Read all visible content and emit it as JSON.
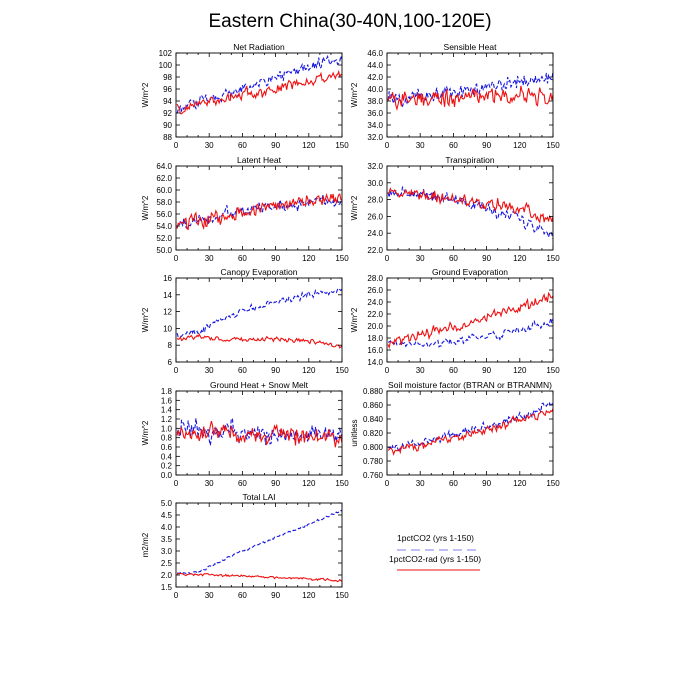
{
  "figure": {
    "title": "Eastern China(30-40N,100-120E)"
  },
  "colors": {
    "series_1pctCO2": "#1515e0",
    "series_1pctCO2_rad": "#ee1111"
  },
  "legend": {
    "items": [
      {
        "label": "1pctCO2 (yrs 1-150)",
        "color": "#1515e0",
        "style": "dashed"
      },
      {
        "label": "1pctCO2-rad (yrs 1-150)",
        "color": "#ee1111",
        "style": "solid"
      }
    ]
  },
  "chart_data": [
    {
      "type": "line",
      "title": "Net Radiation",
      "xlabel": "",
      "ylabel": "W/m^2",
      "xlim": [
        0,
        150
      ],
      "ylim": [
        88,
        102
      ],
      "xticks": [
        0,
        30,
        60,
        90,
        120,
        150
      ],
      "xtick_labels": [
        "0",
        "30",
        "60",
        "90",
        "120",
        "150"
      ],
      "yticks": [
        88,
        90,
        92,
        94,
        96,
        98,
        100,
        102
      ],
      "ytick_labels": [
        "88",
        "90",
        "92",
        "94",
        "96",
        "98",
        "100",
        "102"
      ],
      "series": [
        {
          "name": "1pctCO2 (yrs 1-150)",
          "style": "dashed",
          "color": "#1515e0",
          "keypoints": [
            [
              1,
              92.5
            ],
            [
              30,
              94.5
            ],
            [
              60,
              96
            ],
            [
              90,
              98
            ],
            [
              120,
              99.5
            ],
            [
              150,
              101
            ]
          ],
          "noise": 1.2
        },
        {
          "name": "1pctCO2-rad (yrs 1-150)",
          "style": "solid",
          "color": "#ee1111",
          "keypoints": [
            [
              1,
              92.5
            ],
            [
              30,
              94
            ],
            [
              60,
              95
            ],
            [
              90,
              96
            ],
            [
              120,
              97.2
            ],
            [
              150,
              98
            ]
          ],
          "noise": 1.2
        }
      ]
    },
    {
      "type": "line",
      "title": "Sensible Heat",
      "xlabel": "",
      "ylabel": "W/m^2",
      "xlim": [
        0,
        150
      ],
      "ylim": [
        32,
        46
      ],
      "xticks": [
        0,
        30,
        60,
        90,
        120,
        150
      ],
      "xtick_labels": [
        "0",
        "30",
        "60",
        "90",
        "120",
        "150"
      ],
      "yticks": [
        32,
        34,
        36,
        38,
        40,
        42,
        44,
        46
      ],
      "ytick_labels": [
        "32.0",
        "34.0",
        "36.0",
        "38.0",
        "40.0",
        "42.0",
        "44.0",
        "46.0"
      ],
      "series": [
        {
          "name": "1pctCO2 (yrs 1-150)",
          "style": "dashed",
          "color": "#1515e0",
          "keypoints": [
            [
              1,
              38.2
            ],
            [
              30,
              38.8
            ],
            [
              60,
              39.5
            ],
            [
              90,
              40.3
            ],
            [
              120,
              41.2
            ],
            [
              150,
              42
            ]
          ],
          "noise": 1.6
        },
        {
          "name": "1pctCO2-rad (yrs 1-150)",
          "style": "solid",
          "color": "#ee1111",
          "keypoints": [
            [
              1,
              38.5
            ],
            [
              30,
              38.5
            ],
            [
              60,
              38.7
            ],
            [
              90,
              38.8
            ],
            [
              120,
              38.8
            ],
            [
              150,
              38.6
            ]
          ],
          "noise": 1.8
        }
      ]
    },
    {
      "type": "line",
      "title": "Latent Heat",
      "xlabel": "",
      "ylabel": "W/m^2",
      "xlim": [
        0,
        150
      ],
      "ylim": [
        50,
        64
      ],
      "xticks": [
        0,
        30,
        60,
        90,
        120,
        150
      ],
      "xtick_labels": [
        "0",
        "30",
        "60",
        "90",
        "120",
        "150"
      ],
      "yticks": [
        50,
        52,
        54,
        56,
        58,
        60,
        62,
        64
      ],
      "ytick_labels": [
        "50.0",
        "52.0",
        "54.0",
        "56.0",
        "58.0",
        "60.0",
        "62.0",
        "64.0"
      ],
      "series": [
        {
          "name": "1pctCO2 (yrs 1-150)",
          "style": "dashed",
          "color": "#1515e0",
          "keypoints": [
            [
              1,
              54.2
            ],
            [
              30,
              55.3
            ],
            [
              60,
              56.5
            ],
            [
              90,
              57.3
            ],
            [
              120,
              58
            ],
            [
              150,
              58.5
            ]
          ],
          "noise": 1.3
        },
        {
          "name": "1pctCO2-rad (yrs 1-150)",
          "style": "solid",
          "color": "#ee1111",
          "keypoints": [
            [
              1,
              54.5
            ],
            [
              30,
              55
            ],
            [
              60,
              56.2
            ],
            [
              90,
              57.3
            ],
            [
              120,
              58.2
            ],
            [
              150,
              58.8
            ]
          ],
          "noise": 1.6
        }
      ]
    },
    {
      "type": "line",
      "title": "Transpiration",
      "xlabel": "",
      "ylabel": "W/m^2",
      "xlim": [
        0,
        150
      ],
      "ylim": [
        22,
        32
      ],
      "xticks": [
        0,
        30,
        60,
        90,
        120,
        150
      ],
      "xtick_labels": [
        "0",
        "30",
        "60",
        "90",
        "120",
        "150"
      ],
      "yticks": [
        22,
        24,
        26,
        28,
        30,
        32
      ],
      "ytick_labels": [
        "22.0",
        "24.0",
        "26.0",
        "28.0",
        "30.0",
        "32.0"
      ],
      "series": [
        {
          "name": "1pctCO2 (yrs 1-150)",
          "style": "dashed",
          "color": "#1515e0",
          "keypoints": [
            [
              1,
              28.8
            ],
            [
              30,
              28.8
            ],
            [
              60,
              28
            ],
            [
              90,
              27
            ],
            [
              120,
              25.5
            ],
            [
              150,
              23.8
            ]
          ],
          "noise": 0.9
        },
        {
          "name": "1pctCO2-rad (yrs 1-150)",
          "style": "solid",
          "color": "#ee1111",
          "keypoints": [
            [
              1,
              28.8
            ],
            [
              30,
              28.5
            ],
            [
              60,
              28
            ],
            [
              90,
              27.5
            ],
            [
              120,
              27
            ],
            [
              150,
              25.5
            ]
          ],
          "noise": 0.9
        }
      ]
    },
    {
      "type": "line",
      "title": "Canopy Evaporation",
      "xlabel": "",
      "ylabel": "W/m^2",
      "xlim": [
        0,
        150
      ],
      "ylim": [
        6,
        16
      ],
      "xticks": [
        0,
        30,
        60,
        90,
        120,
        150
      ],
      "xtick_labels": [
        "0",
        "30",
        "60",
        "90",
        "120",
        "150"
      ],
      "yticks": [
        6,
        8,
        10,
        12,
        14,
        16
      ],
      "ytick_labels": [
        "6",
        "8",
        "10",
        "12",
        "14",
        "16"
      ],
      "series": [
        {
          "name": "1pctCO2 (yrs 1-150)",
          "style": "dashed",
          "color": "#1515e0",
          "keypoints": [
            [
              1,
              9.2
            ],
            [
              20,
              9.5
            ],
            [
              40,
              11
            ],
            [
              60,
              12
            ],
            [
              90,
              13.2
            ],
            [
              120,
              14
            ],
            [
              150,
              14.5
            ]
          ],
          "noise": 0.5
        },
        {
          "name": "1pctCO2-rad (yrs 1-150)",
          "style": "solid",
          "color": "#ee1111",
          "keypoints": [
            [
              1,
              9
            ],
            [
              30,
              8.8
            ],
            [
              60,
              8.7
            ],
            [
              90,
              8.6
            ],
            [
              120,
              8.4
            ],
            [
              150,
              8
            ]
          ],
          "noise": 0.4
        }
      ]
    },
    {
      "type": "line",
      "title": "Ground Evaporation",
      "xlabel": "",
      "ylabel": "W/m^2",
      "xlim": [
        0,
        150
      ],
      "ylim": [
        14,
        28
      ],
      "xticks": [
        0,
        30,
        60,
        90,
        120,
        150
      ],
      "xtick_labels": [
        "0",
        "30",
        "60",
        "90",
        "120",
        "150"
      ],
      "yticks": [
        14,
        16,
        18,
        20,
        22,
        24,
        26,
        28
      ],
      "ytick_labels": [
        "14.0",
        "16.0",
        "18.0",
        "20.0",
        "22.0",
        "24.0",
        "26.0",
        "28.0"
      ],
      "series": [
        {
          "name": "1pctCO2 (yrs 1-150)",
          "style": "dashed",
          "color": "#1515e0",
          "keypoints": [
            [
              1,
              17.2
            ],
            [
              30,
              16.8
            ],
            [
              60,
              17.5
            ],
            [
              90,
              18.3
            ],
            [
              120,
              19.3
            ],
            [
              150,
              21
            ]
          ],
          "noise": 0.8
        },
        {
          "name": "1pctCO2-rad (yrs 1-150)",
          "style": "solid",
          "color": "#ee1111",
          "keypoints": [
            [
              1,
              17
            ],
            [
              30,
              18.5
            ],
            [
              60,
              19.8
            ],
            [
              90,
              21.5
            ],
            [
              120,
              23
            ],
            [
              150,
              25
            ]
          ],
          "noise": 1.0
        }
      ]
    },
    {
      "type": "line",
      "title": "Ground Heat + Snow Melt",
      "xlabel": "",
      "ylabel": "W/m^2",
      "xlim": [
        0,
        150
      ],
      "ylim": [
        0,
        1.8
      ],
      "xticks": [
        0,
        30,
        60,
        90,
        120,
        150
      ],
      "xtick_labels": [
        "0",
        "30",
        "60",
        "90",
        "120",
        "150"
      ],
      "yticks": [
        0,
        0.2,
        0.4,
        0.6,
        0.8,
        1.0,
        1.2,
        1.4,
        1.6,
        1.8
      ],
      "ytick_labels": [
        "0.0",
        "0.2",
        "0.4",
        "0.6",
        "0.8",
        "1.0",
        "1.2",
        "1.4",
        "1.6",
        "1.8"
      ],
      "series": [
        {
          "name": "1pctCO2 (yrs 1-150)",
          "style": "dashed",
          "color": "#1515e0",
          "keypoints": [
            [
              1,
              0.95
            ],
            [
              150,
              0.82
            ]
          ],
          "noise": 0.28
        },
        {
          "name": "1pctCO2-rad (yrs 1-150)",
          "style": "solid",
          "color": "#ee1111",
          "keypoints": [
            [
              1,
              0.95
            ],
            [
              150,
              0.82
            ]
          ],
          "noise": 0.25
        }
      ]
    },
    {
      "type": "line",
      "title": "Soil moisture factor (BTRAN or BTRANMN)",
      "xlabel": "",
      "ylabel": "unitless",
      "xlim": [
        0,
        150
      ],
      "ylim": [
        0.76,
        0.88
      ],
      "xticks": [
        0,
        30,
        60,
        90,
        120,
        150
      ],
      "xtick_labels": [
        "0",
        "30",
        "60",
        "90",
        "120",
        "150"
      ],
      "yticks": [
        0.76,
        0.78,
        0.8,
        0.82,
        0.84,
        0.86,
        0.88
      ],
      "ytick_labels": [
        "0.760",
        "0.780",
        "0.800",
        "0.820",
        "0.840",
        "0.860",
        "0.880"
      ],
      "series": [
        {
          "name": "1pctCO2 (yrs 1-150)",
          "style": "dashed",
          "color": "#1515e0",
          "keypoints": [
            [
              1,
              0.797
            ],
            [
              30,
              0.805
            ],
            [
              60,
              0.817
            ],
            [
              90,
              0.83
            ],
            [
              120,
              0.842
            ],
            [
              150,
              0.862
            ]
          ],
          "noise": 0.008
        },
        {
          "name": "1pctCO2-rad (yrs 1-150)",
          "style": "solid",
          "color": "#ee1111",
          "keypoints": [
            [
              1,
              0.795
            ],
            [
              30,
              0.803
            ],
            [
              60,
              0.813
            ],
            [
              90,
              0.825
            ],
            [
              120,
              0.838
            ],
            [
              150,
              0.852
            ]
          ],
          "noise": 0.008
        }
      ]
    },
    {
      "type": "line",
      "title": "Total LAI",
      "xlabel": "",
      "ylabel": "m2/m2",
      "xlim": [
        0,
        150
      ],
      "ylim": [
        1.5,
        5.0
      ],
      "xticks": [
        0,
        30,
        60,
        90,
        120,
        150
      ],
      "xtick_labels": [
        "0",
        "30",
        "60",
        "90",
        "120",
        "150"
      ],
      "yticks": [
        1.5,
        2.0,
        2.5,
        3.0,
        3.5,
        4.0,
        4.5,
        5.0
      ],
      "ytick_labels": [
        "1.5",
        "2.0",
        "2.5",
        "3.0",
        "3.5",
        "4.0",
        "4.5",
        "5.0"
      ],
      "series": [
        {
          "name": "1pctCO2 (yrs 1-150)",
          "style": "dashed",
          "color": "#1515e0",
          "keypoints": [
            [
              1,
              2.05
            ],
            [
              20,
              2.1
            ],
            [
              40,
              2.55
            ],
            [
              60,
              3.0
            ],
            [
              90,
              3.55
            ],
            [
              120,
              4.1
            ],
            [
              150,
              4.7
            ]
          ],
          "noise": 0.06
        },
        {
          "name": "1pctCO2-rad (yrs 1-150)",
          "style": "solid",
          "color": "#ee1111",
          "keypoints": [
            [
              1,
              2.05
            ],
            [
              30,
              2.0
            ],
            [
              60,
              1.95
            ],
            [
              90,
              1.9
            ],
            [
              120,
              1.85
            ],
            [
              150,
              1.75
            ]
          ],
          "noise": 0.07
        }
      ]
    }
  ]
}
